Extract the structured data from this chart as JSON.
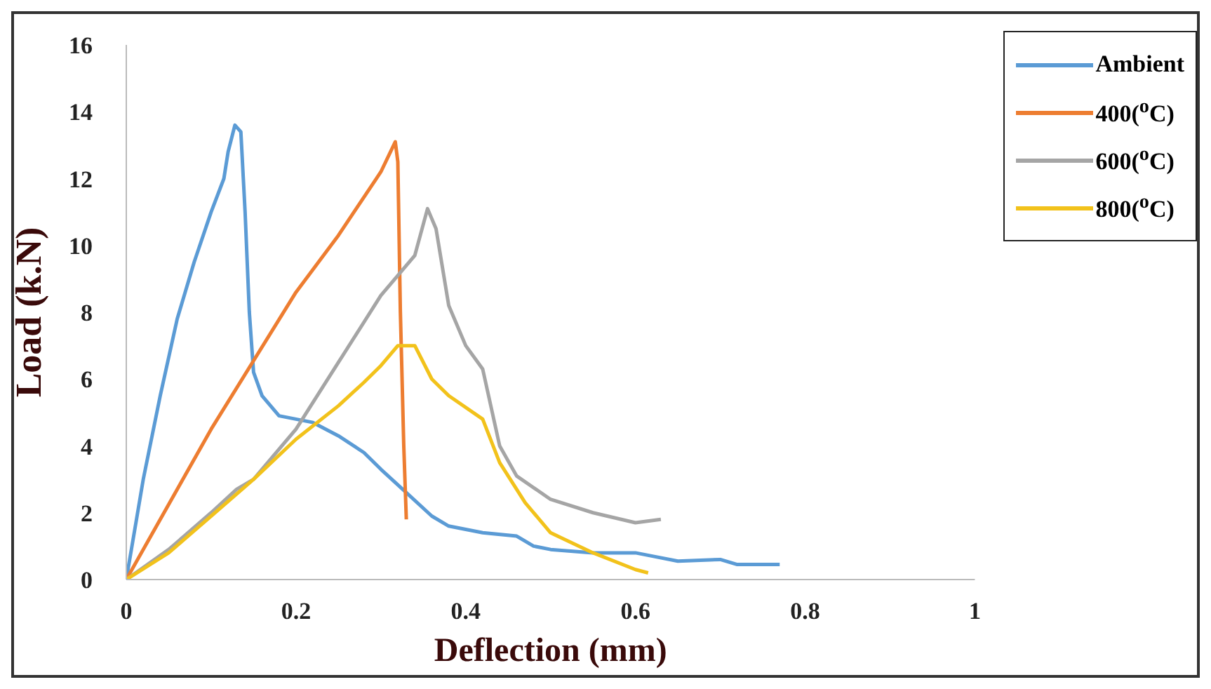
{
  "chart_data": {
    "type": "line",
    "xlabel": "Deflection (mm)",
    "ylabel": "Load (k.N)",
    "xlim": [
      0,
      1
    ],
    "xticks": [
      0,
      0.2,
      0.4,
      0.6,
      0.8,
      1
    ],
    "ylim": [
      0,
      16
    ],
    "yticks": [
      0,
      2,
      4,
      6,
      8,
      10,
      12,
      14,
      16
    ],
    "grid": false,
    "legend": "top right",
    "marker": "none",
    "line_style": "solid",
    "series": [
      {
        "name": "Ambient",
        "color": "#5b9bd5",
        "x": [
          0,
          0.01,
          0.02,
          0.04,
          0.06,
          0.08,
          0.1,
          0.115,
          0.12,
          0.128,
          0.135,
          0.14,
          0.145,
          0.15,
          0.16,
          0.18,
          0.2,
          0.22,
          0.25,
          0.28,
          0.3,
          0.33,
          0.36,
          0.38,
          0.42,
          0.46,
          0.48,
          0.5,
          0.55,
          0.6,
          0.62,
          0.65,
          0.7,
          0.72,
          0.77
        ],
        "values": [
          0,
          1.5,
          3,
          5.5,
          7.8,
          9.5,
          11,
          12,
          12.8,
          13.6,
          13.4,
          11,
          8,
          6.2,
          5.5,
          4.9,
          4.8,
          4.7,
          4.3,
          3.8,
          3.3,
          2.6,
          1.9,
          1.6,
          1.4,
          1.3,
          1,
          0.9,
          0.8,
          0.8,
          0.7,
          0.55,
          0.6,
          0.45,
          0.45
        ]
      },
      {
        "name": "400($^{o}$C)",
        "color": "#ed7d31",
        "x": [
          0,
          0.1,
          0.2,
          0.25,
          0.3,
          0.317,
          0.32,
          0.323,
          0.327,
          0.33
        ],
        "values": [
          0,
          4.5,
          8.6,
          10.3,
          12.2,
          13.1,
          12.5,
          8,
          4,
          1.8
        ]
      },
      {
        "name": "600($^{o}$C)",
        "color": "#a5a5a5",
        "x": [
          0,
          0.05,
          0.1,
          0.13,
          0.15,
          0.2,
          0.25,
          0.3,
          0.34,
          0.355,
          0.365,
          0.38,
          0.4,
          0.42,
          0.44,
          0.46,
          0.5,
          0.55,
          0.6,
          0.63
        ],
        "values": [
          0,
          0.9,
          2,
          2.7,
          3,
          4.5,
          6.5,
          8.5,
          9.7,
          11.1,
          10.5,
          8.2,
          7,
          6.3,
          4,
          3.1,
          2.4,
          2,
          1.7,
          1.8
        ]
      },
      {
        "name": "800($^{o}$C)",
        "color": "#f2c21b",
        "x": [
          0,
          0.05,
          0.1,
          0.15,
          0.2,
          0.25,
          0.28,
          0.3,
          0.32,
          0.34,
          0.36,
          0.38,
          0.42,
          0.44,
          0.47,
          0.5,
          0.55,
          0.6,
          0.615
        ],
        "values": [
          0,
          0.8,
          1.9,
          3,
          4.2,
          5.2,
          5.9,
          6.4,
          7,
          7,
          6,
          5.5,
          4.8,
          3.5,
          2.3,
          1.4,
          0.8,
          0.3,
          0.2
        ]
      }
    ]
  }
}
